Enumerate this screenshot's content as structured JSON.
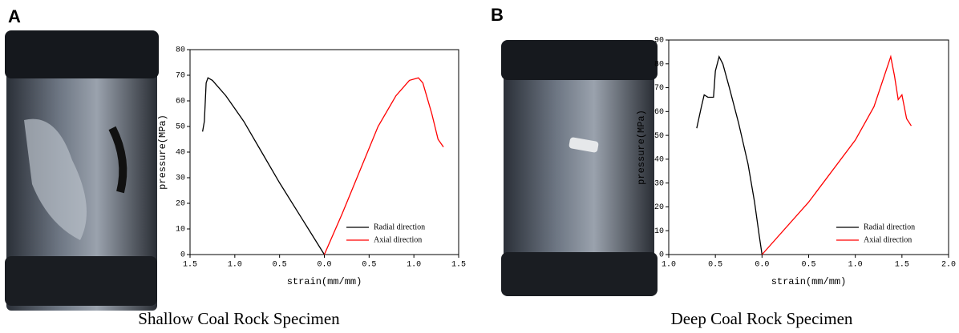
{
  "chart_data": [
    {
      "type": "line",
      "panel": "A",
      "caption": "Shallow Coal Rock Specimen",
      "x_label": "strain(mm/mm)",
      "y_label": "pressure(MPa)",
      "xlim": [
        -1.5,
        1.5
      ],
      "xticks": [
        {
          "value": -1.5,
          "label": "1.5"
        },
        {
          "value": -1,
          "label": "1.0"
        },
        {
          "value": -0.5,
          "label": "0.5"
        },
        {
          "value": 0,
          "label": "0.0"
        },
        0.5,
        {
          "value": 1,
          "label": "1.0"
        },
        1.5
      ],
      "ylim": [
        0,
        80
      ],
      "yticks": [
        0,
        10,
        20,
        30,
        40,
        50,
        60,
        70,
        80
      ],
      "legend": "lower right",
      "series": [
        {
          "name": "Radial direction",
          "color": "#000000",
          "x": [
            -1.36,
            -1.34,
            -1.32,
            -1.3,
            -1.25,
            -1.1,
            -0.9,
            -0.7,
            -0.5,
            -0.25,
            0
          ],
          "values": [
            48,
            52,
            67,
            69,
            68,
            62,
            52,
            40,
            28,
            14,
            0
          ]
        },
        {
          "name": "Axial direction",
          "color": "#ff0000",
          "x": [
            0,
            0.2,
            0.4,
            0.6,
            0.8,
            0.95,
            1.05,
            1.1,
            1.2,
            1.27,
            1.33
          ],
          "values": [
            0,
            16,
            33,
            50,
            62,
            68,
            69,
            67,
            55,
            45,
            42
          ]
        }
      ]
    },
    {
      "type": "line",
      "panel": "B",
      "caption": "Deep Coal Rock Specimen",
      "x_label": "strain(mm/mm)",
      "y_label": "pressure(MPa)",
      "xlim": [
        -1,
        2
      ],
      "xticks": [
        {
          "value": -1,
          "label": "1.0"
        },
        {
          "value": -0.5,
          "label": "0.5"
        },
        {
          "value": 0,
          "label": "0.0"
        },
        0.5,
        {
          "value": 1,
          "label": "1.0"
        },
        1.5,
        {
          "value": 2,
          "label": "2.0"
        }
      ],
      "ylim": [
        0,
        90
      ],
      "yticks": [
        0,
        10,
        20,
        30,
        40,
        50,
        60,
        70,
        80,
        90
      ],
      "legend": "lower right",
      "series": [
        {
          "name": "Radial direction",
          "color": "#000000",
          "x": [
            -0.7,
            -0.65,
            -0.62,
            -0.58,
            -0.52,
            -0.5,
            -0.46,
            -0.42,
            -0.35,
            -0.25,
            -0.15,
            -0.08,
            -0.03,
            0
          ],
          "values": [
            53,
            62,
            67,
            66,
            66,
            77,
            83,
            80,
            70,
            55,
            38,
            22,
            8,
            0
          ]
        },
        {
          "name": "Axial direction",
          "color": "#ff0000",
          "x": [
            0,
            0.5,
            1,
            1.2,
            1.38,
            1.42,
            1.46,
            1.5,
            1.55,
            1.6
          ],
          "values": [
            0,
            22,
            48,
            62,
            83,
            75,
            65,
            67,
            57,
            54
          ]
        }
      ]
    }
  ]
}
